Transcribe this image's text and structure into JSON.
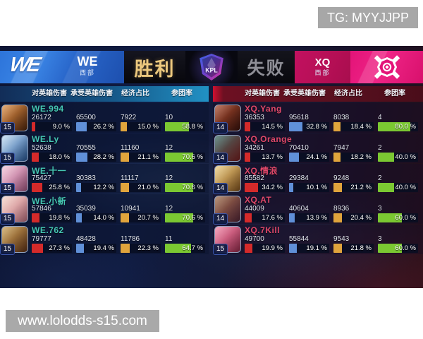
{
  "overlay": {
    "tg": "TG: MYYJJPP",
    "watermark": "www.lolodds-s15.com"
  },
  "banner": {
    "left_team": {
      "name": "WE",
      "region": "西部",
      "result": "胜利",
      "logo_text": "WE"
    },
    "right_team": {
      "name": "XQ",
      "region": "西部",
      "result": "失败"
    },
    "league": "KPL"
  },
  "columns": [
    "对英雄伤害",
    "承受英雄伤害",
    "经济占比",
    "参团率"
  ],
  "bar_colors": [
    "#d42a2a",
    "#6090d8",
    "#e0a43c",
    "#7bc832"
  ],
  "teams": {
    "left": {
      "name_color": "#45c7b3",
      "players": [
        {
          "name": "WE.994",
          "level": "15",
          "avatar": [
            "#d98c44",
            "#55280f"
          ],
          "stats": [
            {
              "value": "26172",
              "pct": "9.0 %"
            },
            {
              "value": "65500",
              "pct": "26.2 %"
            },
            {
              "value": "7922",
              "pct": "15.0 %"
            },
            {
              "value": "10",
              "pct": "58.8 %"
            }
          ]
        },
        {
          "name": "WE.Ly",
          "level": "15",
          "avatar": [
            "#bcd8f0",
            "#2a5a9a"
          ],
          "stats": [
            {
              "value": "52638",
              "pct": "18.0 %"
            },
            {
              "value": "70555",
              "pct": "28.2 %"
            },
            {
              "value": "11160",
              "pct": "21.1 %"
            },
            {
              "value": "12",
              "pct": "70.6 %"
            }
          ]
        },
        {
          "name": "WE.十一",
          "level": "15",
          "avatar": [
            "#f2c3d5",
            "#a85a86"
          ],
          "stats": [
            {
              "value": "75427",
              "pct": "25.8 %"
            },
            {
              "value": "30383",
              "pct": "12.2 %"
            },
            {
              "value": "11117",
              "pct": "21.0 %"
            },
            {
              "value": "12",
              "pct": "70.6 %"
            }
          ]
        },
        {
          "name": "WE.小新",
          "level": "15",
          "avatar": [
            "#f4d2c6",
            "#c27484"
          ],
          "stats": [
            {
              "value": "57846",
              "pct": "19.8 %"
            },
            {
              "value": "35039",
              "pct": "14.0 %"
            },
            {
              "value": "10941",
              "pct": "20.7 %"
            },
            {
              "value": "12",
              "pct": "70.6 %"
            }
          ]
        },
        {
          "name": "WE.762",
          "level": "15",
          "avatar": [
            "#c9a055",
            "#64361a"
          ],
          "stats": [
            {
              "value": "79777",
              "pct": "27.3 %"
            },
            {
              "value": "48428",
              "pct": "19.4 %"
            },
            {
              "value": "11786",
              "pct": "22.3 %"
            },
            {
              "value": "11",
              "pct": "64.7 %"
            }
          ]
        }
      ]
    },
    "right": {
      "name_color": "#e0486a",
      "players": [
        {
          "name": "XQ.Yang",
          "level": "14",
          "avatar": [
            "#a44a2e",
            "#3c130d"
          ],
          "stats": [
            {
              "value": "36353",
              "pct": "14.5 %"
            },
            {
              "value": "95618",
              "pct": "32.8 %"
            },
            {
              "value": "8038",
              "pct": "18.4 %"
            },
            {
              "value": "4",
              "pct": "80.0 %"
            }
          ]
        },
        {
          "name": "XQ.Orange",
          "level": "14",
          "avatar": [
            "#34645f",
            "#7c2222"
          ],
          "stats": [
            {
              "value": "34261",
              "pct": "13.7 %"
            },
            {
              "value": "70410",
              "pct": "24.1 %"
            },
            {
              "value": "7947",
              "pct": "18.2 %"
            },
            {
              "value": "2",
              "pct": "40.0 %"
            }
          ]
        },
        {
          "name": "XQ.情浪",
          "level": "14",
          "avatar": [
            "#e9ca7e",
            "#86551f"
          ],
          "stats": [
            {
              "value": "85582",
              "pct": "34.2 %"
            },
            {
              "value": "29384",
              "pct": "10.1 %"
            },
            {
              "value": "9248",
              "pct": "21.2 %"
            },
            {
              "value": "2",
              "pct": "40.0 %"
            }
          ]
        },
        {
          "name": "XQ.AT",
          "level": "14",
          "avatar": [
            "#9a6a48",
            "#58283a"
          ],
          "stats": [
            {
              "value": "44009",
              "pct": "17.6 %"
            },
            {
              "value": "40604",
              "pct": "13.9 %"
            },
            {
              "value": "8936",
              "pct": "20.4 %"
            },
            {
              "value": "3",
              "pct": "60.0 %"
            }
          ]
        },
        {
          "name": "XQ.7Kill",
          "level": "15",
          "avatar": [
            "#f084a4",
            "#9c2e50"
          ],
          "stats": [
            {
              "value": "49700",
              "pct": "19.9 %"
            },
            {
              "value": "55844",
              "pct": "19.1 %"
            },
            {
              "value": "9543",
              "pct": "21.8 %"
            },
            {
              "value": "3",
              "pct": "60.0 %"
            }
          ]
        }
      ]
    }
  }
}
